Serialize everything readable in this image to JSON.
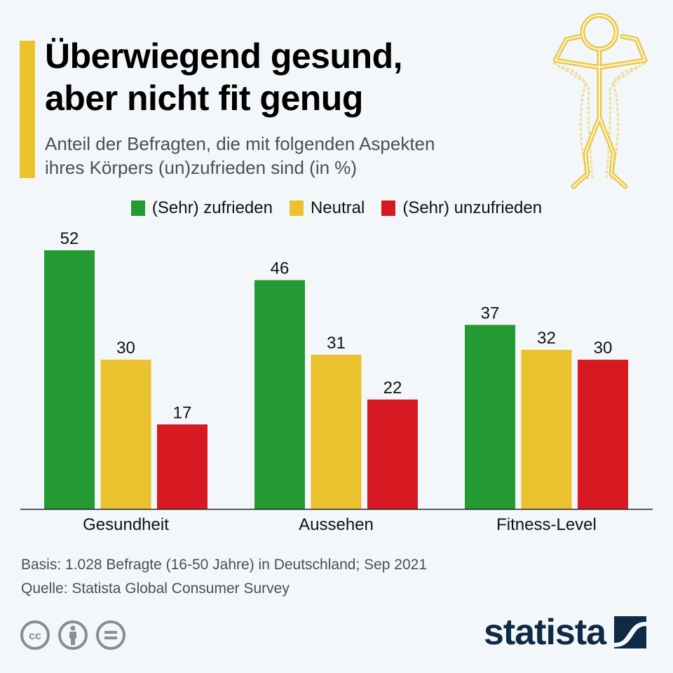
{
  "header": {
    "title_lines": [
      "Überwiegend gesund,",
      "aber nicht fit genug"
    ],
    "subtitle_lines": [
      "Anteil der Befragten, die mit folgenden Aspekten",
      "ihres Körpers (un)zufrieden sind (in %)"
    ],
    "accent_color": "#e9c22e",
    "illustration": "flexing-stick-figure-icon"
  },
  "chart_data": {
    "type": "bar",
    "title": "Überwiegend gesund, aber nicht fit genug",
    "subtitle": "Anteil der Befragten, die mit folgenden Aspekten ihres Körpers (un)zufrieden sind (in %)",
    "xlabel": "",
    "ylabel": "",
    "ylim": [
      0,
      52
    ],
    "grid": false,
    "legend_position": "top-center",
    "categories": [
      "Gesundheit",
      "Aussehen",
      "Fitness-Level"
    ],
    "series": [
      {
        "name": "(Sehr) zufrieden",
        "color": "#249a33",
        "values": [
          52,
          46,
          37
        ]
      },
      {
        "name": "Neutral",
        "color": "#e9c22e",
        "values": [
          30,
          31,
          32
        ]
      },
      {
        "name": "(Sehr) unzufrieden",
        "color": "#d71921",
        "values": [
          17,
          22,
          30
        ]
      }
    ]
  },
  "footer": {
    "basis": "Basis: 1.028 Befragte (16-50 Jahre) in Deutschland; Sep 2021",
    "source": "Quelle: Statista Global Consumer Survey",
    "license_icons": [
      "cc-icon",
      "attribution-icon",
      "no-derivatives-icon"
    ],
    "logo_text": "statista",
    "logo_color": "#0f2a44"
  }
}
